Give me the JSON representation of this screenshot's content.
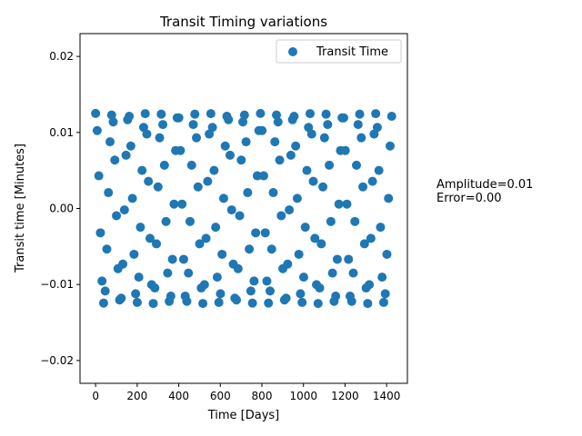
{
  "annotation": {
    "amplitude": "Amplitude=0.01",
    "error": "Error=0.00"
  },
  "chart_data": {
    "type": "scatter",
    "title": "Transit Timing variations",
    "xlabel": "Time [Days]",
    "ylabel": "Transit time [Minutes]",
    "xlim": [
      -75,
      1500
    ],
    "ylim": [
      -0.023,
      0.023
    ],
    "xticks": [
      0,
      200,
      400,
      600,
      800,
      1000,
      1200,
      1400
    ],
    "xtick_labels": [
      "0",
      "200",
      "400",
      "600",
      "800",
      "1000",
      "1200",
      "1400"
    ],
    "yticks": [
      -0.02,
      -0.01,
      0.0,
      0.01,
      0.02
    ],
    "ytick_labels": [
      "−0.02",
      "−0.01",
      "0.00",
      "0.01",
      "0.02"
    ],
    "grid": false,
    "legend": {
      "position": "top-right",
      "entries": [
        "Transit Time"
      ]
    },
    "series": [
      {
        "name": "Transit Time",
        "color": "#1f77b4",
        "marker": "circle",
        "x_start": 0,
        "x_step": 7.7,
        "count": 186,
        "amplitude": 0.0125,
        "period": 10.3
      }
    ]
  }
}
